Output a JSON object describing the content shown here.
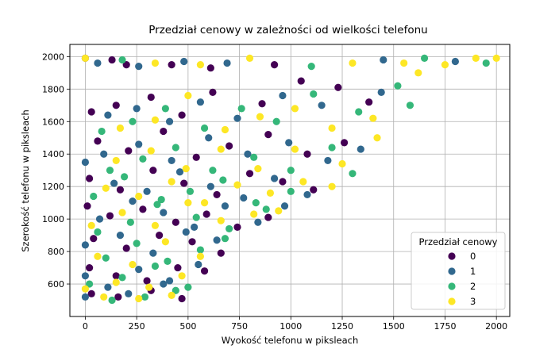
{
  "chart_data": {
    "type": "scatter",
    "title": "Przedział cenowy w zależności od wielkości telefonu",
    "xlabel": "Wyokość telefonu w piksleach",
    "ylabel": "Szerokość telefonu w piksleach",
    "xlim": [
      -75,
      2065
    ],
    "ylim": [
      400,
      2075
    ],
    "xticks": [
      0,
      250,
      500,
      750,
      1000,
      1250,
      1500,
      1750,
      2000
    ],
    "yticks": [
      600,
      800,
      1000,
      1200,
      1400,
      1600,
      1800,
      2000
    ],
    "grid": true,
    "legend": {
      "title": "Przedział cenowy",
      "placement": "lower right",
      "entries": [
        "0",
        "1",
        "2",
        "3"
      ]
    },
    "colors": [
      "#440154",
      "#31688e",
      "#35b779",
      "#fde725"
    ],
    "series": [
      {
        "name": "0",
        "points": [
          [
            0,
            1990
          ],
          [
            130,
            1980
          ],
          [
            200,
            1950
          ],
          [
            420,
            1950
          ],
          [
            610,
            1930
          ],
          [
            920,
            1950
          ],
          [
            30,
            1660
          ],
          [
            150,
            1700
          ],
          [
            320,
            1750
          ],
          [
            470,
            1640
          ],
          [
            620,
            1780
          ],
          [
            860,
            1710
          ],
          [
            1050,
            1850
          ],
          [
            1230,
            1810
          ],
          [
            1380,
            1720
          ],
          [
            60,
            1480
          ],
          [
            210,
            1420
          ],
          [
            380,
            1540
          ],
          [
            540,
            1380
          ],
          [
            700,
            1450
          ],
          [
            890,
            1520
          ],
          [
            1080,
            1400
          ],
          [
            1260,
            1470
          ],
          [
            20,
            1250
          ],
          [
            170,
            1180
          ],
          [
            330,
            1300
          ],
          [
            480,
            1220
          ],
          [
            640,
            1150
          ],
          [
            800,
            1280
          ],
          [
            960,
            1230
          ],
          [
            1110,
            1180
          ],
          [
            10,
            1080
          ],
          [
            120,
            1020
          ],
          [
            280,
            1060
          ],
          [
            440,
            980
          ],
          [
            590,
            1030
          ],
          [
            740,
            950
          ],
          [
            890,
            1010
          ],
          [
            40,
            880
          ],
          [
            200,
            820
          ],
          [
            360,
            900
          ],
          [
            520,
            860
          ],
          [
            660,
            790
          ],
          [
            20,
            700
          ],
          [
            150,
            650
          ],
          [
            300,
            620
          ],
          [
            450,
            700
          ],
          [
            580,
            680
          ],
          [
            30,
            540
          ],
          [
            160,
            520
          ],
          [
            320,
            560
          ],
          [
            470,
            510
          ]
        ]
      },
      {
        "name": "1",
        "points": [
          [
            60,
            1960
          ],
          [
            260,
            1940
          ],
          [
            480,
            1970
          ],
          [
            690,
            1960
          ],
          [
            1450,
            1980
          ],
          [
            1800,
            1970
          ],
          [
            110,
            1640
          ],
          [
            250,
            1680
          ],
          [
            410,
            1600
          ],
          [
            560,
            1720
          ],
          [
            740,
            1620
          ],
          [
            960,
            1760
          ],
          [
            1150,
            1700
          ],
          [
            1440,
            1780
          ],
          [
            90,
            1400
          ],
          [
            260,
            1460
          ],
          [
            420,
            1360
          ],
          [
            600,
            1500
          ],
          [
            790,
            1400
          ],
          [
            990,
            1470
          ],
          [
            1180,
            1360
          ],
          [
            1340,
            1430
          ],
          [
            0,
            1350
          ],
          [
            140,
            1220
          ],
          [
            300,
            1170
          ],
          [
            460,
            1290
          ],
          [
            610,
            1200
          ],
          [
            770,
            1130
          ],
          [
            920,
            1250
          ],
          [
            1080,
            1150
          ],
          [
            70,
            1000
          ],
          [
            230,
            1110
          ],
          [
            380,
            1040
          ],
          [
            530,
            950
          ],
          [
            680,
            1080
          ],
          [
            840,
            980
          ],
          [
            970,
            1080
          ],
          [
            0,
            840
          ],
          [
            170,
            900
          ],
          [
            330,
            790
          ],
          [
            490,
            920
          ],
          [
            640,
            870
          ],
          [
            0,
            650
          ],
          [
            110,
            580
          ],
          [
            260,
            690
          ],
          [
            410,
            620
          ],
          [
            550,
            720
          ],
          [
            0,
            520
          ],
          [
            210,
            540
          ],
          [
            380,
            600
          ]
        ]
      },
      {
        "name": "2",
        "points": [
          [
            180,
            1980
          ],
          [
            1100,
            1940
          ],
          [
            1650,
            1990
          ],
          [
            1950,
            1960
          ],
          [
            80,
            1540
          ],
          [
            230,
            1600
          ],
          [
            390,
            1680
          ],
          [
            580,
            1560
          ],
          [
            760,
            1680
          ],
          [
            930,
            1600
          ],
          [
            1110,
            1770
          ],
          [
            1330,
            1660
          ],
          [
            1520,
            1820
          ],
          [
            1580,
            1700
          ],
          [
            120,
            1300
          ],
          [
            280,
            1370
          ],
          [
            440,
            1440
          ],
          [
            620,
            1300
          ],
          [
            820,
            1380
          ],
          [
            1000,
            1300
          ],
          [
            1200,
            1440
          ],
          [
            1300,
            1280
          ],
          [
            40,
            1140
          ],
          [
            190,
            1260
          ],
          [
            350,
            1090
          ],
          [
            510,
            1170
          ],
          [
            670,
            1240
          ],
          [
            830,
            1100
          ],
          [
            1000,
            1170
          ],
          [
            60,
            920
          ],
          [
            220,
            980
          ],
          [
            370,
            1120
          ],
          [
            540,
            1010
          ],
          [
            700,
            940
          ],
          [
            880,
            1060
          ],
          [
            100,
            760
          ],
          [
            250,
            850
          ],
          [
            400,
            740
          ],
          [
            560,
            810
          ],
          [
            680,
            880
          ],
          [
            20,
            600
          ],
          [
            180,
            640
          ],
          [
            340,
            710
          ],
          [
            500,
            580
          ],
          [
            130,
            500
          ],
          [
            290,
            520
          ],
          [
            440,
            560
          ]
        ]
      },
      {
        "name": "3",
        "points": [
          [
            0,
            1990
          ],
          [
            340,
            1960
          ],
          [
            560,
            1950
          ],
          [
            800,
            1990
          ],
          [
            1300,
            1960
          ],
          [
            1550,
            1960
          ],
          [
            1900,
            1990
          ],
          [
            2000,
            1990
          ],
          [
            170,
            1560
          ],
          [
            340,
            1610
          ],
          [
            500,
            1760
          ],
          [
            680,
            1550
          ],
          [
            850,
            1630
          ],
          [
            1020,
            1680
          ],
          [
            1200,
            1560
          ],
          [
            1400,
            1620
          ],
          [
            1620,
            1900
          ],
          [
            1750,
            1950
          ],
          [
            150,
            1360
          ],
          [
            320,
            1420
          ],
          [
            490,
            1310
          ],
          [
            660,
            1430
          ],
          [
            840,
            1310
          ],
          [
            1020,
            1430
          ],
          [
            1250,
            1340
          ],
          [
            1420,
            1500
          ],
          [
            100,
            1190
          ],
          [
            260,
            1140
          ],
          [
            420,
            1230
          ],
          [
            580,
            1100
          ],
          [
            740,
            1210
          ],
          [
            900,
            1160
          ],
          [
            1060,
            1230
          ],
          [
            1200,
            1200
          ],
          [
            30,
            960
          ],
          [
            180,
            1040
          ],
          [
            340,
            960
          ],
          [
            500,
            1100
          ],
          [
            660,
            990
          ],
          [
            820,
            1030
          ],
          [
            940,
            1050
          ],
          [
            60,
            770
          ],
          [
            230,
            720
          ],
          [
            390,
            860
          ],
          [
            560,
            770
          ],
          [
            0,
            570
          ],
          [
            150,
            610
          ],
          [
            310,
            580
          ],
          [
            470,
            650
          ],
          [
            90,
            520
          ],
          [
            260,
            510
          ],
          [
            420,
            530
          ]
        ]
      }
    ]
  }
}
